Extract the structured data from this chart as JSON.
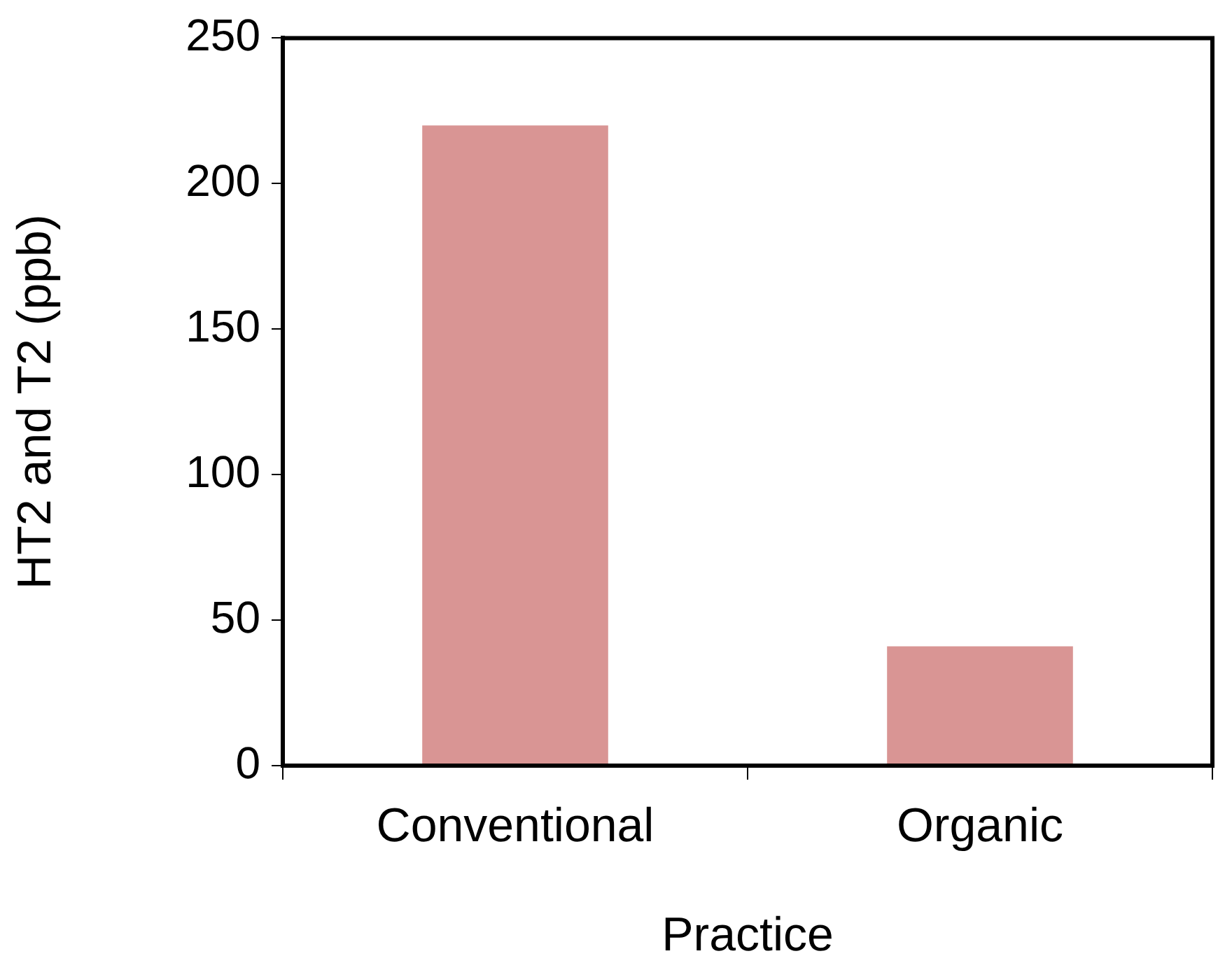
{
  "chart_data": {
    "type": "bar",
    "xlabel": "Practice",
    "ylabel": "HT2 and T2 (ppb)",
    "categories": [
      "Conventional",
      "Organic"
    ],
    "values": [
      220,
      41
    ],
    "color": "#d99594",
    "ylim": [
      0,
      250
    ],
    "yticks": [
      0,
      50,
      100,
      150,
      200,
      250
    ],
    "grid": false,
    "legend": false
  }
}
